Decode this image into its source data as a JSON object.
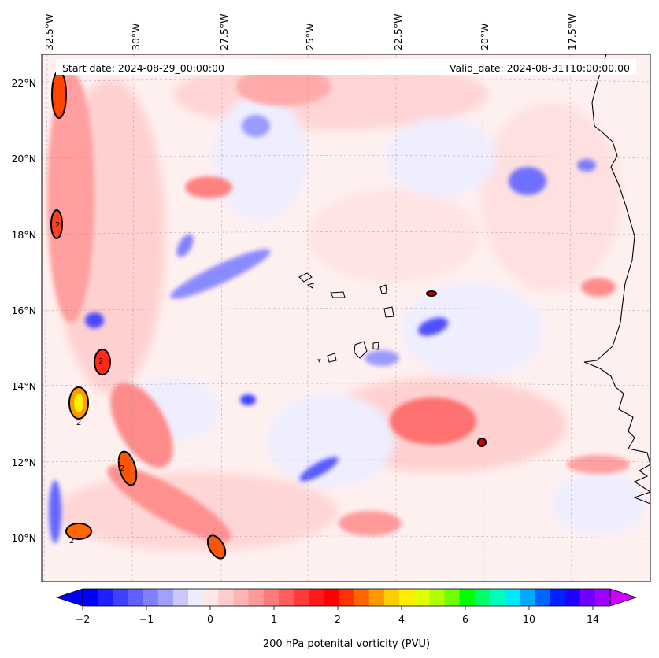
{
  "map": {
    "start_date": "Start date: 2024-08-29_00:00:00",
    "valid_date": "Valid_date: 2024-08-31T10:00:00.00",
    "lon_labels": [
      "32.5°W",
      "30°W",
      "27.5°W",
      "25°W",
      "22.5°W",
      "20°W",
      "17.5°W"
    ],
    "lat_labels": [
      "22°N",
      "20°N",
      "18°N",
      "16°N",
      "14°N",
      "12°N",
      "10°N"
    ],
    "contour_level_label": "2",
    "contour_color": "#000000",
    "coastline_color": "#000000"
  },
  "colorbar": {
    "label": "200 hPa potenital vorticity (PVU)",
    "tick_labels": [
      "−2",
      "−1",
      "0",
      "1",
      "2",
      "4",
      "6",
      "10",
      "14"
    ],
    "colors": [
      "#0000ff",
      "#2020ff",
      "#4040ff",
      "#6060ff",
      "#8080ff",
      "#a0a0ff",
      "#c8c8ff",
      "#ececff",
      "#ffe6e6",
      "#ffcccc",
      "#ffb3b3",
      "#ff9999",
      "#ff7a7a",
      "#ff5c5c",
      "#ff3a3a",
      "#ff1a1a",
      "#ff0000",
      "#ff3300",
      "#ff6600",
      "#ff9900",
      "#ffcc00",
      "#ffee00",
      "#e0ff00",
      "#b0ff00",
      "#70ff00",
      "#00ff00",
      "#00ff66",
      "#00ffbb",
      "#00e8ff",
      "#00aaff",
      "#0066ff",
      "#0022ff",
      "#2000ff",
      "#7000ff",
      "#a000ff"
    ],
    "extend_low_color": "#0000ff",
    "extend_high_color": "#cc00ff"
  }
}
